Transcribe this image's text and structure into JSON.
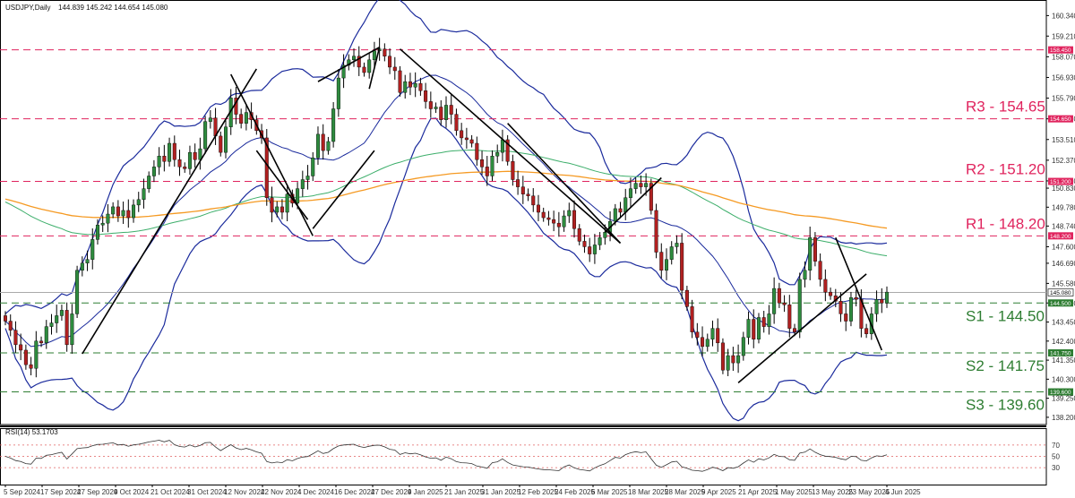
{
  "header": {
    "symbol_title": "USDJPY,Daily",
    "ohlc": "144.839 145.242 144.654 145.080"
  },
  "rsi_panel": {
    "title": "RSI(14) 53.1703",
    "levels": [
      70,
      50,
      30
    ]
  },
  "chart_data": {
    "type": "candlestick",
    "symbol": "USDJPY",
    "timeframe": "Daily",
    "ohlc_last": {
      "open": 144.839,
      "high": 145.242,
      "low": 144.654,
      "close": 145.08
    },
    "current_price": 145.08,
    "price_axis": {
      "ylim": [
        137.8,
        161.1
      ],
      "ticks": [
        "160.340",
        "159.210",
        "158.070",
        "156.930",
        "155.790",
        "154.650",
        "153.510",
        "152.370",
        "151.230",
        "150.830",
        "149.780",
        "148.740",
        "147.600",
        "146.690",
        "145.580",
        "144.500",
        "143.450",
        "142.400",
        "141.350",
        "140.300",
        "139.250",
        "138.200"
      ]
    },
    "x_labels": [
      "5 Sep 2024",
      "17 Sep 2024",
      "27 Sep 2024",
      "9 Oct 2024",
      "21 Oct 2024",
      "31 Oct 2024",
      "12 Nov 2024",
      "22 Nov 2024",
      "4 Dec 2024",
      "16 Dec 2024",
      "27 Dec 2024",
      "9 Jan 2025",
      "21 Jan 2025",
      "31 Jan 2025",
      "12 Feb 2025",
      "24 Feb 2025",
      "6 Mar 2025",
      "18 Mar 2025",
      "28 Mar 2025",
      "9 Apr 2025",
      "21 Apr 2025",
      "1 May 2025",
      "13 May 2025",
      "23 May 2025",
      "4 Jun 2025"
    ],
    "levels": [
      {
        "name": "R3",
        "label": "R3 - 154.65",
        "value": 154.65,
        "tag": "154.650",
        "color": "#e0245e",
        "style": "dashed"
      },
      {
        "name": "R2",
        "label": "R2 - 151.20",
        "value": 151.2,
        "tag": "151.200",
        "color": "#e0245e",
        "style": "dashed"
      },
      {
        "name": "R1",
        "label": "R1 - 148.20",
        "value": 148.2,
        "tag": "148.200",
        "color": "#e0245e",
        "style": "dashed"
      },
      {
        "name": "S1",
        "label": "S1 - 144.50",
        "value": 144.5,
        "tag": "144.500",
        "color": "#2e7d32",
        "style": "dashed"
      },
      {
        "name": "S2",
        "label": "S2 - 141.75",
        "value": 141.75,
        "tag": "141.750",
        "color": "#2e7d32",
        "style": "dashed"
      },
      {
        "name": "S3",
        "label": "S3 - 139.60",
        "value": 139.6,
        "tag": "139.600",
        "color": "#2e7d32",
        "style": "dashed"
      }
    ],
    "extra_level": {
      "value": 158.45,
      "tag": "158.450",
      "color": "#e0245e"
    },
    "closes": [
      143.5,
      143.0,
      142.2,
      141.9,
      141.1,
      140.9,
      142.4,
      142.3,
      143.2,
      143.4,
      143.8,
      144.1,
      142.2,
      143.9,
      146.3,
      146.7,
      146.9,
      148.0,
      148.8,
      148.9,
      149.4,
      149.8,
      149.3,
      149.6,
      149.2,
      149.9,
      150.2,
      150.8,
      151.5,
      152.0,
      152.6,
      152.3,
      153.3,
      152.4,
      152.0,
      151.9,
      152.8,
      152.4,
      153.0,
      154.5,
      154.7,
      153.7,
      152.8,
      154.2,
      155.8,
      154.9,
      154.4,
      155.0,
      154.6,
      154.0,
      153.6,
      150.3,
      149.5,
      149.8,
      149.5,
      150.5,
      150.0,
      150.8,
      151.3,
      151.5,
      152.5,
      153.8,
      152.9,
      153.4,
      155.2,
      156.9,
      157.6,
      157.9,
      158.1,
      157.5,
      157.2,
      157.9,
      158.4,
      158.5,
      158.1,
      157.5,
      157.3,
      156.1,
      156.7,
      156.4,
      156.6,
      156.2,
      155.6,
      155.2,
      155.3,
      154.6,
      155.4,
      154.9,
      154.0,
      153.6,
      153.5,
      153.3,
      152.4,
      152.0,
      151.5,
      152.6,
      152.8,
      153.5,
      152.3,
      151.3,
      150.9,
      150.5,
      150.4,
      149.9,
      149.5,
      149.2,
      149.1,
      148.9,
      148.7,
      149.3,
      149.6,
      148.6,
      147.9,
      147.6,
      147.2,
      147.7,
      148.1,
      148.4,
      149.0,
      149.7,
      149.5,
      150.3,
      150.8,
      151.1,
      150.9,
      151.1,
      149.6,
      147.3,
      146.3,
      146.9,
      147.6,
      147.8,
      145.2,
      144.3,
      142.9,
      142.6,
      142.1,
      142.5,
      143.1,
      142.3,
      140.8,
      141.6,
      141.2,
      141.6,
      142.6,
      143.6,
      142.5,
      143.7,
      143.2,
      143.9,
      145.3,
      144.5,
      144.4,
      143.1,
      142.9,
      145.8,
      146.3,
      148.1,
      146.8,
      145.8,
      145.1,
      144.9,
      144.6,
      143.9,
      143.5,
      144.8,
      144.7,
      143.1,
      142.8,
      143.9,
      144.7,
      144.5,
      145.1
    ]
  }
}
